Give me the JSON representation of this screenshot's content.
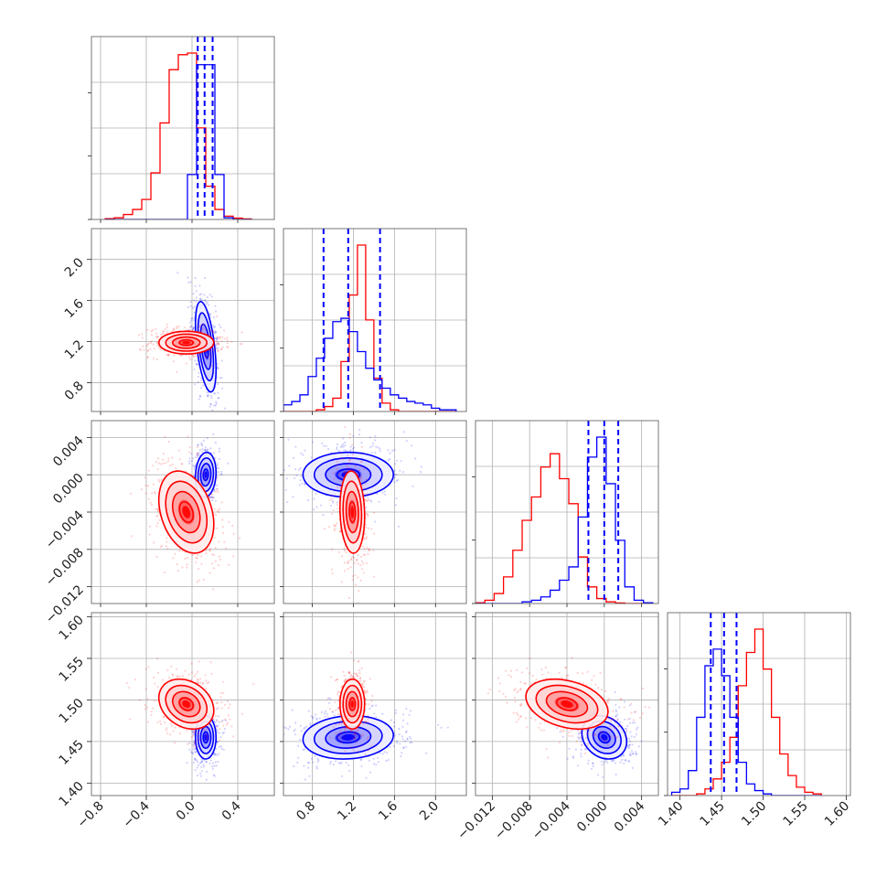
{
  "chart_data": {
    "type": "corner",
    "parameters": 4,
    "series": [
      {
        "name": "",
        "color": "#ff0000"
      },
      {
        "name": "",
        "color": "#0000ff"
      }
    ],
    "axes": [
      {
        "ticks": [
          -0.8,
          -0.4,
          0.0,
          0.4
        ],
        "tick_labels": [
          "−0.8",
          "−0.4",
          "0.0",
          "0.4"
        ],
        "range": [
          -0.88,
          0.72
        ]
      },
      {
        "ticks": [
          0.8,
          1.2,
          1.6,
          2.0
        ],
        "tick_labels": [
          "0.8",
          "1.2",
          "1.6",
          "2.0"
        ],
        "range": [
          0.52,
          2.3
        ]
      },
      {
        "ticks": [
          -0.012,
          -0.008,
          -0.004,
          0.0,
          0.004
        ],
        "tick_labels": [
          "−0.012",
          "−0.008",
          "−0.004",
          "0.000",
          "0.004"
        ],
        "range": [
          -0.0138,
          0.0058
        ]
      },
      {
        "ticks": [
          1.4,
          1.45,
          1.5,
          1.55,
          1.6
        ],
        "tick_labels": [
          "1.40",
          "1.45",
          "1.50",
          "1.55",
          "1.60"
        ],
        "range": [
          1.385,
          1.605
        ]
      }
    ],
    "quantile_lines": [
      [
        0.05,
        0.11,
        0.18
      ],
      [
        0.91,
        1.15,
        1.46
      ],
      [
        -0.0017,
        0.0,
        0.0015
      ],
      [
        1.437,
        1.453,
        1.468
      ]
    ],
    "histograms": [
      {
        "bin_edges": [
          -0.76,
          -0.68,
          -0.6,
          -0.52,
          -0.44,
          -0.36,
          -0.28,
          -0.2,
          -0.12,
          -0.04,
          0.04,
          0.12,
          0.2,
          0.28,
          0.36,
          0.44,
          0.52
        ],
        "red": [
          0.005,
          0.01,
          0.03,
          0.06,
          0.12,
          0.28,
          0.58,
          0.9,
          0.99,
          1.0,
          0.55,
          0.2,
          0.06,
          0.02,
          0.008,
          0.003
        ],
        "blue": [
          0,
          0,
          0,
          0,
          0,
          0,
          0,
          0,
          0,
          0.27,
          0.93,
          0.93,
          0.27,
          0.01,
          0,
          0
        ]
      },
      {
        "bin_edges": [
          0.52,
          0.6,
          0.68,
          0.76,
          0.84,
          0.92,
          1.0,
          1.08,
          1.16,
          1.24,
          1.32,
          1.4,
          1.48,
          1.56,
          1.64,
          1.72,
          1.8,
          1.88,
          1.96,
          2.04,
          2.12,
          2.2
        ],
        "red": [
          0,
          0,
          0,
          0,
          0.01,
          0.03,
          0.08,
          0.3,
          0.7,
          1.0,
          0.55,
          0.2,
          0.05,
          0.01,
          0,
          0,
          0,
          0,
          0,
          0,
          0
        ],
        "blue": [
          0.04,
          0.06,
          0.1,
          0.21,
          0.32,
          0.44,
          0.54,
          0.56,
          0.48,
          0.36,
          0.26,
          0.19,
          0.14,
          0.1,
          0.08,
          0.06,
          0.05,
          0.04,
          0.02,
          0.01,
          0.01
        ]
      },
      {
        "bin_edges": [
          -0.0138,
          -0.0128,
          -0.0118,
          -0.0108,
          -0.0098,
          -0.0088,
          -0.0078,
          -0.0068,
          -0.0058,
          -0.0048,
          -0.0038,
          -0.0028,
          -0.0018,
          -0.0008,
          0.0002,
          0.0012,
          0.0022,
          0.0032,
          0.0042,
          0.0052
        ],
        "red": [
          0.005,
          0.02,
          0.06,
          0.16,
          0.32,
          0.5,
          0.64,
          0.82,
          0.9,
          0.75,
          0.6,
          0.28,
          0.1,
          0.03,
          0.01,
          0.003,
          0,
          0,
          0
        ],
        "blue": [
          0,
          0,
          0,
          0,
          0,
          0.01,
          0.02,
          0.04,
          0.08,
          0.14,
          0.22,
          0.52,
          0.88,
          1.0,
          0.72,
          0.38,
          0.1,
          0.02,
          0.005
        ]
      },
      {
        "bin_edges": [
          1.39,
          1.4,
          1.41,
          1.42,
          1.43,
          1.44,
          1.45,
          1.46,
          1.47,
          1.48,
          1.49,
          1.5,
          1.51,
          1.52,
          1.53,
          1.54,
          1.55,
          1.56,
          1.57
        ],
        "red": [
          0,
          0,
          0,
          0.01,
          0.04,
          0.1,
          0.2,
          0.35,
          0.66,
          0.86,
          1.0,
          0.76,
          0.47,
          0.25,
          0.12,
          0.05,
          0.02,
          0.01
        ],
        "blue": [
          0.02,
          0.04,
          0.15,
          0.47,
          0.78,
          0.88,
          0.72,
          0.47,
          0.2,
          0.07,
          0.03,
          0.01,
          0,
          0,
          0,
          0,
          0,
          0
        ]
      }
    ],
    "pair_panels": [
      {
        "x": 0,
        "y": 1,
        "red": {
          "mean": [
            -0.05,
            1.19
          ],
          "sd": [
            0.12,
            0.055
          ],
          "corr": 0.0
        },
        "blue": {
          "mean": [
            0.12,
            1.15
          ],
          "sd": [
            0.045,
            0.22
          ],
          "corr": -0.5
        }
      },
      {
        "x": 0,
        "y": 2,
        "red": {
          "mean": [
            -0.05,
            -0.004
          ],
          "sd": [
            0.12,
            0.0022
          ],
          "corr": -0.3
        },
        "blue": {
          "mean": [
            0.12,
            0.0
          ],
          "sd": [
            0.045,
            0.0012
          ],
          "corr": 0.1
        }
      },
      {
        "x": 0,
        "y": 3,
        "red": {
          "mean": [
            -0.05,
            1.495
          ],
          "sd": [
            0.12,
            0.015
          ],
          "corr": -0.25
        },
        "blue": {
          "mean": [
            0.12,
            1.455
          ],
          "sd": [
            0.045,
            0.013
          ],
          "corr": 0.0
        }
      },
      {
        "x": 1,
        "y": 2,
        "red": {
          "mean": [
            1.19,
            -0.004
          ],
          "sd": [
            0.06,
            0.0022
          ],
          "corr": -0.1
        },
        "blue": {
          "mean": [
            1.15,
            0.0
          ],
          "sd": [
            0.22,
            0.0012
          ],
          "corr": 0.0
        }
      },
      {
        "x": 1,
        "y": 3,
        "red": {
          "mean": [
            1.19,
            1.495
          ],
          "sd": [
            0.06,
            0.015
          ],
          "corr": 0.0
        },
        "blue": {
          "mean": [
            1.15,
            1.455
          ],
          "sd": [
            0.22,
            0.013
          ],
          "corr": 0.1
        }
      },
      {
        "x": 2,
        "y": 3,
        "red": {
          "mean": [
            -0.004,
            1.495
          ],
          "sd": [
            0.0022,
            0.015
          ],
          "corr": -0.3
        },
        "blue": {
          "mean": [
            0.0,
            1.455
          ],
          "sd": [
            0.0012,
            0.013
          ],
          "corr": -0.2
        }
      }
    ],
    "grid": true
  }
}
